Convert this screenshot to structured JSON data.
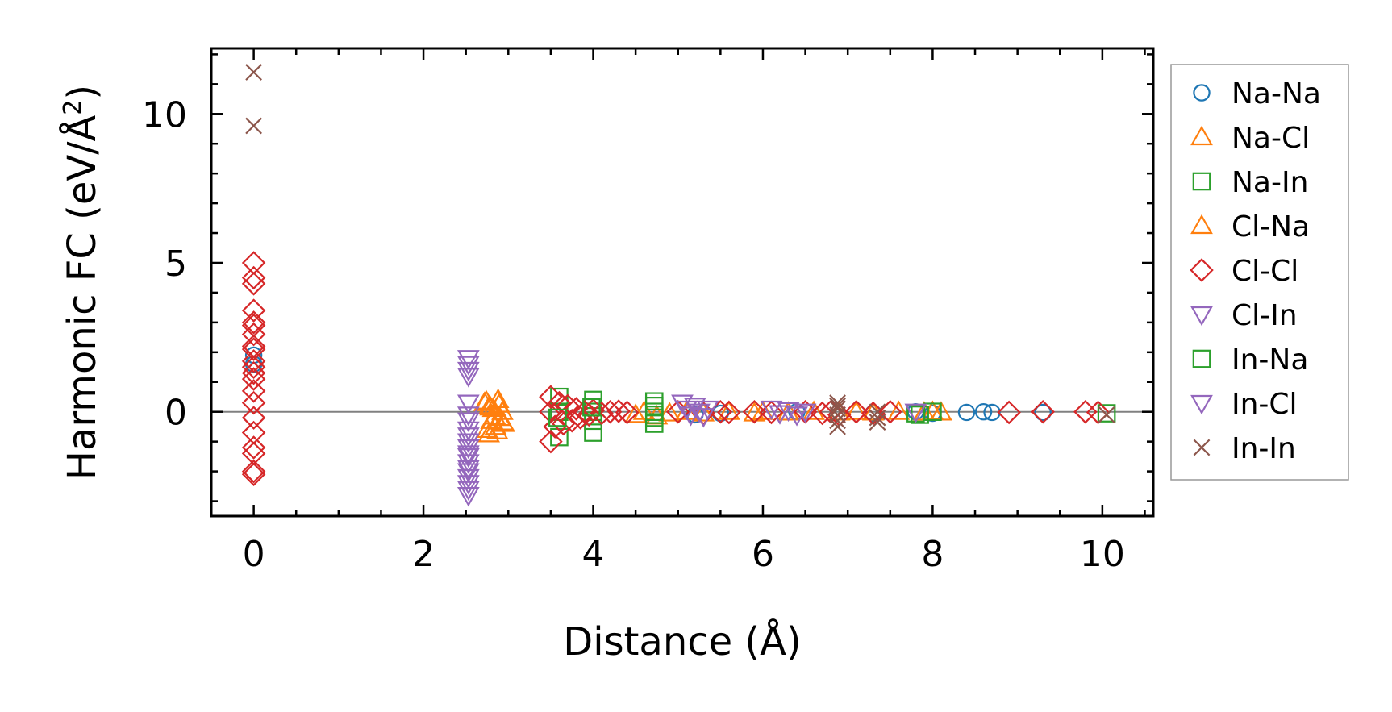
{
  "chart_data": {
    "type": "scatter",
    "title": "",
    "xlabel": "Distance (Å)",
    "ylabel": "Harmonic FC (eV/Å",
    "ylabel_sup": "2",
    "ylabel_close": ")",
    "xlim": [
      -0.5,
      10.6
    ],
    "ylim": [
      -3.5,
      12.2
    ],
    "xticks": [
      0,
      2,
      4,
      6,
      8,
      10
    ],
    "xtick_labels": [
      "0",
      "2",
      "4",
      "6",
      "8",
      "10"
    ],
    "yticks": [
      0,
      5,
      10
    ],
    "ytick_labels": [
      "0",
      "5",
      "10"
    ],
    "grid": false,
    "zero_line": true,
    "legend_position": "right",
    "series": [
      {
        "name": "Na-Na",
        "marker": "circle",
        "color": "#1f77b4",
        "filled": false,
        "x": [
          0,
          0,
          5.2,
          5.5,
          6.4,
          7.3,
          7.8,
          8.0,
          8.4,
          8.6,
          8.7,
          9.3
        ],
        "y": [
          1.9,
          1.6,
          -0.1,
          -0.05,
          0.0,
          -0.05,
          0.0,
          -0.05,
          -0.02,
          0.0,
          -0.02,
          -0.02
        ]
      },
      {
        "name": "Na-Cl",
        "marker": "triangle-up",
        "color": "#ff7f0e",
        "filled": false,
        "x": [
          2.72,
          2.75,
          2.78,
          2.8,
          2.82,
          2.85,
          2.88,
          2.9,
          2.93,
          2.95,
          4.5,
          4.6,
          4.75,
          4.9,
          5.1,
          5.3,
          5.6,
          5.9,
          6.0,
          6.3,
          6.6,
          6.9,
          7.1,
          7.3,
          7.6,
          7.9,
          8.0,
          8.1
        ],
        "y": [
          0.3,
          -0.6,
          0.2,
          -0.3,
          0.1,
          -0.5,
          0.4,
          -0.2,
          0.0,
          -0.4,
          -0.1,
          0.0,
          -0.15,
          -0.05,
          0.0,
          -0.05,
          0.0,
          -0.05,
          0.0,
          -0.02,
          0.0,
          -0.02,
          0.0,
          -0.02,
          0.0,
          -0.02,
          0.0,
          -0.02
        ]
      },
      {
        "name": "Na-In",
        "marker": "square",
        "color": "#2ca02c",
        "filled": false,
        "x": [
          3.6,
          3.6,
          3.6,
          4.0,
          4.0,
          4.0,
          4.0,
          4.72,
          4.72,
          4.72,
          4.72,
          4.72,
          7.8,
          8.0,
          10.05
        ],
        "y": [
          0.5,
          0.0,
          -0.85,
          0.4,
          0.0,
          -0.3,
          -0.7,
          0.2,
          0.0,
          -0.2,
          -0.4,
          0.35,
          -0.05,
          0.0,
          -0.05
        ]
      },
      {
        "name": "Cl-Na",
        "marker": "triangle-up",
        "color": "#ff7f0e",
        "filled": false,
        "x": [
          2.74,
          2.79,
          2.84,
          2.89,
          2.94,
          2.77,
          2.87
        ],
        "y": [
          0.35,
          0.15,
          -0.15,
          0.25,
          -0.35,
          -0.75,
          -0.65
        ]
      },
      {
        "name": "Cl-Cl",
        "marker": "diamond",
        "color": "#d62728",
        "filled": false,
        "x": [
          0,
          0,
          0,
          0,
          0,
          0,
          0,
          0,
          0,
          0,
          0,
          0,
          0,
          0,
          0,
          0,
          0,
          0,
          0,
          0,
          0,
          3.5,
          3.5,
          3.5,
          3.55,
          3.6,
          3.65,
          3.7,
          3.75,
          3.8,
          3.85,
          3.9,
          3.95,
          4.0,
          4.1,
          4.2,
          4.3,
          4.4,
          5.0,
          5.3,
          5.5,
          5.6,
          5.9,
          6.1,
          6.5,
          6.7,
          6.8,
          6.9,
          7.1,
          7.3,
          7.5,
          8.9,
          9.3,
          9.8,
          9.95
        ],
        "y": [
          5.0,
          4.5,
          4.3,
          3.4,
          3.0,
          2.9,
          2.6,
          2.2,
          2.1,
          1.7,
          1.5,
          1.3,
          1.1,
          0.7,
          0.3,
          -0.2,
          -0.7,
          -1.2,
          -1.4,
          -2.0,
          -2.1,
          0.5,
          0.0,
          -1.0,
          -0.5,
          0.3,
          -0.4,
          0.2,
          -0.3,
          0.1,
          -0.2,
          0.0,
          -0.1,
          0.05,
          -0.05,
          0.0,
          0.02,
          -0.02,
          0.0,
          -0.05,
          0.0,
          -0.02,
          0.0,
          -0.02,
          0.0,
          -0.05,
          0.0,
          -0.1,
          0.0,
          -0.05,
          0.0,
          -0.02,
          0.0,
          0.0,
          -0.02
        ]
      },
      {
        "name": "Cl-In",
        "marker": "triangle-down",
        "color": "#9467bd",
        "filled": false,
        "x": [
          2.53,
          2.53,
          2.53,
          2.53,
          2.53,
          2.53,
          2.53,
          2.53,
          2.53,
          2.53,
          2.53,
          2.53,
          2.53,
          2.53,
          2.53,
          2.53,
          2.53,
          2.53,
          2.53,
          2.53
        ],
        "y": [
          1.8,
          1.6,
          1.4,
          1.2,
          0.3,
          -0.1,
          -0.3,
          -0.6,
          -0.8,
          -1.0,
          -1.2,
          -1.4,
          -1.5,
          -1.7,
          -1.9,
          -2.0,
          -2.2,
          -2.4,
          -2.6,
          -2.8
        ]
      },
      {
        "name": "In-Na",
        "marker": "square",
        "color": "#2ca02c",
        "filled": false,
        "x": [
          3.58,
          3.98,
          4.72,
          7.85
        ],
        "y": [
          -0.2,
          0.15,
          -0.1,
          -0.1
        ]
      },
      {
        "name": "In-Cl",
        "marker": "triangle-down",
        "color": "#9467bd",
        "filled": false,
        "x": [
          5.05,
          5.1,
          5.15,
          5.2,
          5.25,
          5.3,
          5.35,
          6.1,
          6.2,
          6.3,
          6.4,
          6.5,
          7.8
        ],
        "y": [
          0.3,
          0.1,
          -0.1,
          0.2,
          0.0,
          -0.15,
          0.1,
          0.1,
          -0.05,
          0.05,
          -0.1,
          0.0,
          0.0
        ]
      },
      {
        "name": "In-In",
        "marker": "x",
        "color": "#8c564b",
        "filled": false,
        "x": [
          0,
          0,
          6.88,
          6.88,
          6.88,
          6.88,
          6.88,
          6.88,
          7.35,
          7.35,
          7.35,
          10.05
        ],
        "y": [
          11.4,
          9.6,
          0.3,
          0.1,
          -0.1,
          -0.3,
          -0.5,
          0.2,
          0.0,
          -0.2,
          -0.35,
          -0.1
        ]
      }
    ]
  }
}
